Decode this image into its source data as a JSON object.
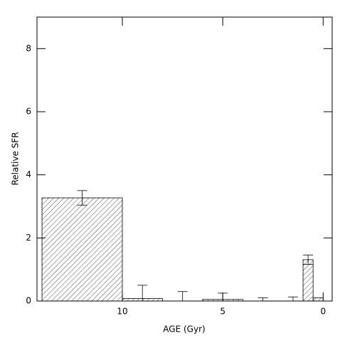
{
  "chart_data": {
    "type": "histogram",
    "xlabel": "AGE (Gyr)",
    "ylabel": "Relative SFR",
    "bins": [
      14,
      10,
      8,
      6,
      4,
      2,
      1,
      0.5,
      0
    ],
    "values": [
      3.27,
      0.08,
      0,
      0.05,
      0,
      0,
      1.31,
      0.1
    ],
    "errors": [
      0.23,
      0.42,
      0.3,
      0.2,
      0.1,
      0.13,
      0.15,
      null
    ],
    "color": "#000000",
    "xlim": [
      14.25,
      -0.45
    ],
    "xticks": [
      10,
      5,
      0
    ],
    "ylim": [
      0,
      9
    ],
    "yticks": [
      0,
      2,
      4,
      6,
      8
    ]
  }
}
